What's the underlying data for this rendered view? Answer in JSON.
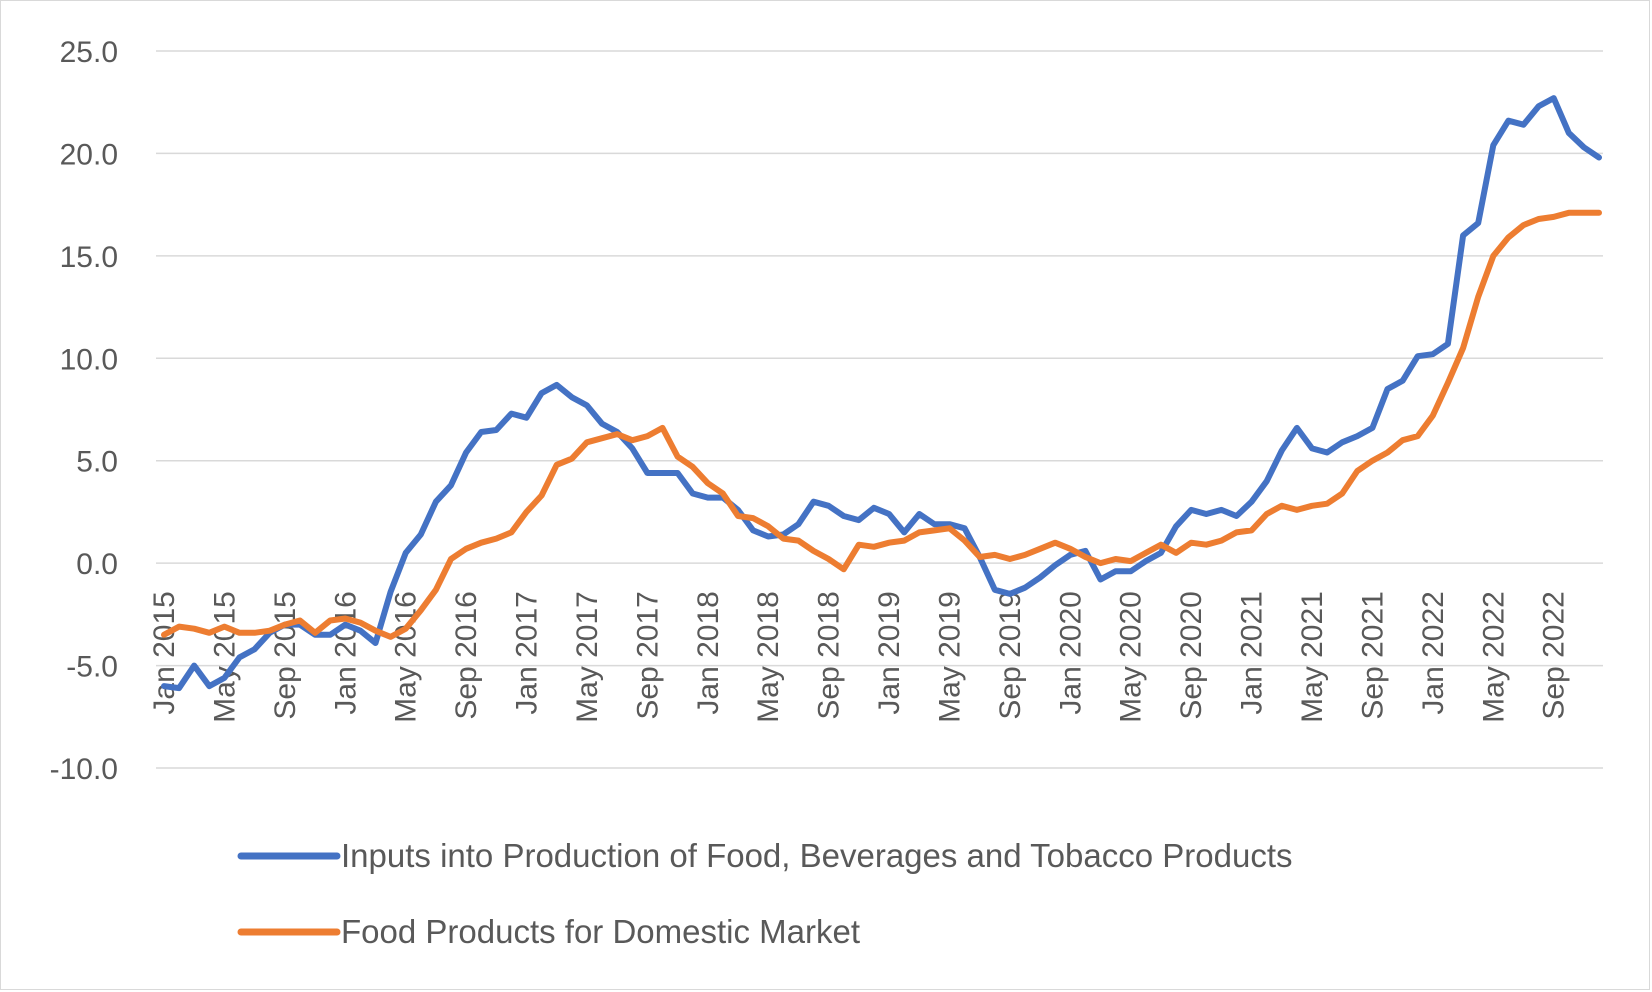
{
  "chart_data": {
    "type": "line",
    "title": "",
    "xlabel": "",
    "ylabel": "",
    "ylim": [
      -10,
      25
    ],
    "ytick_step": 5,
    "ytick_labels": [
      "-10.0",
      "-5.0",
      "0.0",
      "5.0",
      "10.0",
      "15.0",
      "20.0",
      "25.0"
    ],
    "grid": true,
    "legend_position": "bottom",
    "x_start": "2015-01",
    "x": [
      "Jan 2015",
      "Feb 2015",
      "Mar 2015",
      "Apr 2015",
      "May 2015",
      "Jun 2015",
      "Jul 2015",
      "Aug 2015",
      "Sep 2015",
      "Oct 2015",
      "Nov 2015",
      "Dec 2015",
      "Jan 2016",
      "Feb 2016",
      "Mar 2016",
      "Apr 2016",
      "May 2016",
      "Jun 2016",
      "Jul 2016",
      "Aug 2016",
      "Sep 2016",
      "Oct 2016",
      "Nov 2016",
      "Dec 2016",
      "Jan 2017",
      "Feb 2017",
      "Mar 2017",
      "Apr 2017",
      "May 2017",
      "Jun 2017",
      "Jul 2017",
      "Aug 2017",
      "Sep 2017",
      "Oct 2017",
      "Nov 2017",
      "Dec 2017",
      "Jan 2018",
      "Feb 2018",
      "Mar 2018",
      "Apr 2018",
      "May 2018",
      "Jun 2018",
      "Jul 2018",
      "Aug 2018",
      "Sep 2018",
      "Oct 2018",
      "Nov 2018",
      "Dec 2018",
      "Jan 2019",
      "Feb 2019",
      "Mar 2019",
      "Apr 2019",
      "May 2019",
      "Jun 2019",
      "Jul 2019",
      "Aug 2019",
      "Sep 2019",
      "Oct 2019",
      "Nov 2019",
      "Dec 2019",
      "Jan 2020",
      "Feb 2020",
      "Mar 2020",
      "Apr 2020",
      "May 2020",
      "Jun 2020",
      "Jul 2020",
      "Aug 2020",
      "Sep 2020",
      "Oct 2020",
      "Nov 2020",
      "Dec 2020",
      "Jan 2021",
      "Feb 2021",
      "Mar 2021",
      "Apr 2021",
      "May 2021",
      "Jun 2021",
      "Jul 2021",
      "Aug 2021",
      "Sep 2021",
      "Oct 2021",
      "Nov 2021",
      "Dec 2021",
      "Jan 2022",
      "Feb 2022",
      "Mar 2022",
      "Apr 2022",
      "May 2022",
      "Jun 2022",
      "Jul 2022",
      "Aug 2022",
      "Sep 2022",
      "Oct 2022",
      "Nov 2022",
      "Dec 2022"
    ],
    "x_tick_labels": [
      "Jan 2015",
      "May 2015",
      "Sep 2015",
      "Jan 2016",
      "May 2016",
      "Sep 2016",
      "Jan 2017",
      "May 2017",
      "Sep 2017",
      "Jan 2018",
      "May 2018",
      "Sep 2018",
      "Jan 2019",
      "May 2019",
      "Sep 2019",
      "Jan 2020",
      "May 2020",
      "Sep 2020",
      "Jan 2021",
      "May 2021",
      "Sep 2021",
      "Jan 2022",
      "May 2022",
      "Sep 2022"
    ],
    "x_tick_every": 4,
    "series": [
      {
        "name": "Inputs into Production of Food, Beverages and Tobacco Products",
        "color": "#4472C4",
        "values": [
          -6.0,
          -6.1,
          -5.0,
          -6.0,
          -5.6,
          -4.6,
          -4.2,
          -3.4,
          -3.0,
          -3.0,
          -3.5,
          -3.5,
          -3.0,
          -3.3,
          -3.9,
          -1.4,
          0.5,
          1.4,
          3.0,
          3.8,
          5.4,
          6.4,
          6.5,
          7.3,
          7.1,
          8.3,
          8.7,
          8.1,
          7.7,
          6.8,
          6.4,
          5.6,
          4.4,
          4.4,
          4.4,
          3.4,
          3.2,
          3.2,
          2.6,
          1.6,
          1.3,
          1.4,
          1.9,
          3.0,
          2.8,
          2.3,
          2.1,
          2.7,
          2.4,
          1.5,
          2.4,
          1.9,
          1.9,
          1.7,
          0.3,
          -1.3,
          -1.5,
          -1.2,
          -0.7,
          -0.1,
          0.4,
          0.6,
          -0.8,
          -0.4,
          -0.4,
          0.1,
          0.5,
          1.8,
          2.6,
          2.4,
          2.6,
          2.3,
          3.0,
          4.0,
          5.5,
          6.6,
          5.6,
          5.4,
          5.9,
          6.2,
          6.6,
          8.5,
          8.9,
          10.1,
          10.2,
          10.7,
          16.0,
          16.6,
          20.4,
          21.6,
          21.4,
          22.3,
          22.7,
          21.0,
          20.3,
          19.8
        ]
      },
      {
        "name": "Food Products for Domestic Market",
        "color": "#ED7D31",
        "values": [
          -3.5,
          -3.1,
          -3.2,
          -3.4,
          -3.1,
          -3.4,
          -3.4,
          -3.3,
          -3.0,
          -2.8,
          -3.4,
          -2.8,
          -2.7,
          -2.9,
          -3.3,
          -3.6,
          -3.2,
          -2.3,
          -1.3,
          0.2,
          0.7,
          1.0,
          1.2,
          1.5,
          2.5,
          3.3,
          4.8,
          5.1,
          5.9,
          6.1,
          6.3,
          6.0,
          6.2,
          6.6,
          5.2,
          4.7,
          3.9,
          3.4,
          2.3,
          2.2,
          1.8,
          1.2,
          1.1,
          0.6,
          0.2,
          -0.3,
          0.9,
          0.8,
          1.0,
          1.1,
          1.5,
          1.6,
          1.7,
          1.1,
          0.3,
          0.4,
          0.2,
          0.4,
          0.7,
          1.0,
          0.7,
          0.3,
          0.0,
          0.2,
          0.1,
          0.5,
          0.9,
          0.5,
          1.0,
          0.9,
          1.1,
          1.5,
          1.6,
          2.4,
          2.8,
          2.6,
          2.8,
          2.9,
          3.4,
          4.5,
          5.0,
          5.4,
          6.0,
          6.2,
          7.2,
          8.8,
          10.5,
          13.0,
          15.0,
          15.9,
          16.5,
          16.8,
          16.9,
          17.1,
          17.1,
          17.1
        ]
      }
    ]
  }
}
